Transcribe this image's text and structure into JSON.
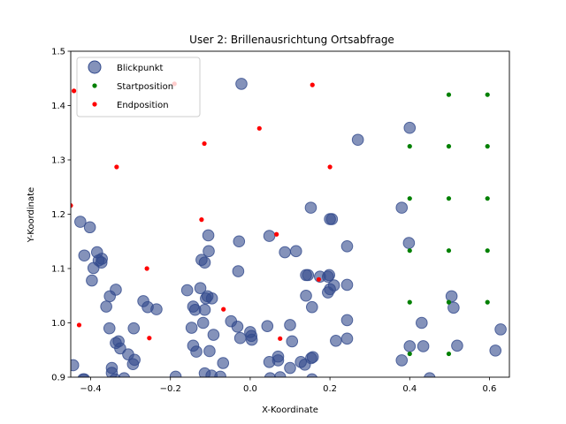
{
  "chart_data": {
    "type": "scatter",
    "title": "User 2: Brillenausrichtung Ortsabfrage",
    "xlabel": "X-Koordinate",
    "ylabel": "Y-Koordinate",
    "xlim": [
      -0.45,
      0.65
    ],
    "ylim": [
      0.9,
      1.5
    ],
    "xticks": [
      -0.4,
      -0.2,
      0.0,
      0.2,
      0.4,
      0.6
    ],
    "yticks": [
      0.9,
      1.0,
      1.1,
      1.2,
      1.3,
      1.4,
      1.5
    ],
    "xtick_labels": [
      "−0.4",
      "−0.2",
      "0.0",
      "0.2",
      "0.4",
      "0.6"
    ],
    "ytick_labels": [
      "0.9",
      "1.0",
      "1.1",
      "1.2",
      "1.3",
      "1.4",
      "1.5"
    ],
    "legend_position": "top-left",
    "series": [
      {
        "name": "Blickpunkt",
        "color": "#324a8c",
        "marker": "large-circle",
        "points": [
          [
            -0.022,
            1.44
          ],
          [
            0.27,
            1.337
          ],
          [
            0.4,
            1.359
          ],
          [
            0.152,
            1.212
          ],
          [
            0.38,
            1.212
          ],
          [
            0.2,
            1.191
          ],
          [
            0.205,
            1.191
          ],
          [
            -0.426,
            1.186
          ],
          [
            -0.402,
            1.176
          ],
          [
            -0.105,
            1.161
          ],
          [
            0.048,
            1.16
          ],
          [
            -0.028,
            1.15
          ],
          [
            0.398,
            1.147
          ],
          [
            0.243,
            1.141
          ],
          [
            -0.104,
            1.132
          ],
          [
            0.087,
            1.13
          ],
          [
            0.115,
            1.132
          ],
          [
            -0.416,
            1.124
          ],
          [
            -0.384,
            1.13
          ],
          [
            -0.38,
            1.115
          ],
          [
            -0.372,
            1.118
          ],
          [
            -0.373,
            1.111
          ],
          [
            -0.122,
            1.116
          ],
          [
            -0.114,
            1.111
          ],
          [
            -0.393,
            1.101
          ],
          [
            -0.03,
            1.095
          ],
          [
            0.145,
            1.088
          ],
          [
            0.14,
            1.088
          ],
          [
            0.198,
            1.088
          ],
          [
            0.195,
            1.085
          ],
          [
            0.175,
            1.085
          ],
          [
            -0.397,
            1.078
          ],
          [
            0.243,
            1.07
          ],
          [
            0.21,
            1.069
          ],
          [
            -0.125,
            1.064
          ],
          [
            -0.158,
            1.06
          ],
          [
            -0.337,
            1.061
          ],
          [
            0.195,
            1.056
          ],
          [
            0.2,
            1.062
          ],
          [
            -0.107,
            1.049
          ],
          [
            -0.096,
            1.045
          ],
          [
            -0.352,
            1.049
          ],
          [
            -0.111,
            1.045
          ],
          [
            0.14,
            1.05
          ],
          [
            0.505,
            1.049
          ],
          [
            -0.268,
            1.04
          ],
          [
            -0.143,
            1.03
          ],
          [
            -0.138,
            1.024
          ],
          [
            -0.114,
            1.024
          ],
          [
            -0.361,
            1.03
          ],
          [
            -0.257,
            1.029
          ],
          [
            -0.235,
            1.025
          ],
          [
            0.155,
            1.029
          ],
          [
            0.51,
            1.028
          ],
          [
            0.243,
            1.005
          ],
          [
            0.43,
            1.0
          ],
          [
            -0.118,
            1.0
          ],
          [
            -0.048,
            1.003
          ],
          [
            0.1,
            0.996
          ],
          [
            0.043,
            0.994
          ],
          [
            -0.032,
            0.993
          ],
          [
            -0.353,
            0.99
          ],
          [
            -0.292,
            0.99
          ],
          [
            -0.147,
            0.991
          ],
          [
            -0.092,
            0.978
          ],
          [
            0.0,
            0.983
          ],
          [
            0.003,
            0.976
          ],
          [
            -0.025,
            0.972
          ],
          [
            0.004,
            0.969
          ],
          [
            0.105,
            0.966
          ],
          [
            0.628,
            0.988
          ],
          [
            -0.337,
            0.963
          ],
          [
            -0.33,
            0.966
          ],
          [
            -0.326,
            0.953
          ],
          [
            -0.143,
            0.958
          ],
          [
            -0.135,
            0.947
          ],
          [
            -0.102,
            0.948
          ],
          [
            0.215,
            0.967
          ],
          [
            0.243,
            0.971
          ],
          [
            0.4,
            0.957
          ],
          [
            0.434,
            0.957
          ],
          [
            0.519,
            0.958
          ],
          [
            0.615,
            0.949
          ],
          [
            -0.306,
            0.942
          ],
          [
            -0.294,
            0.924
          ],
          [
            -0.29,
            0.932
          ],
          [
            0.07,
            0.938
          ],
          [
            0.07,
            0.931
          ],
          [
            0.048,
            0.928
          ],
          [
            0.157,
            0.937
          ],
          [
            0.153,
            0.935
          ],
          [
            0.127,
            0.928
          ],
          [
            0.1,
            0.917
          ],
          [
            0.137,
            0.923
          ],
          [
            0.38,
            0.931
          ],
          [
            -0.444,
            0.922
          ],
          [
            -0.347,
            0.917
          ],
          [
            -0.068,
            0.926
          ],
          [
            -0.347,
            0.908
          ],
          [
            -0.114,
            0.907
          ],
          [
            -0.097,
            0.903
          ],
          [
            -0.075,
            0.901
          ],
          [
            -0.187,
            0.901
          ],
          [
            -0.419,
            0.896
          ],
          [
            -0.416,
            0.896
          ],
          [
            0.05,
            0.898
          ],
          [
            0.075,
            0.9
          ],
          [
            0.155,
            0.896
          ],
          [
            0.45,
            0.898
          ],
          [
            -0.339,
            0.896
          ],
          [
            -0.316,
            0.898
          ]
        ]
      },
      {
        "name": "Startposition",
        "color": "#008000",
        "marker": "small-dot",
        "points": [
          [
            0.498,
            1.42
          ],
          [
            0.595,
            1.42
          ],
          [
            0.4,
            1.325
          ],
          [
            0.498,
            1.325
          ],
          [
            0.595,
            1.325
          ],
          [
            0.4,
            1.229
          ],
          [
            0.498,
            1.229
          ],
          [
            0.595,
            1.229
          ],
          [
            0.4,
            1.133
          ],
          [
            0.498,
            1.133
          ],
          [
            0.595,
            1.133
          ],
          [
            0.4,
            1.038
          ],
          [
            0.498,
            1.038
          ],
          [
            0.595,
            1.038
          ],
          [
            0.4,
            0.943
          ],
          [
            0.498,
            0.943
          ]
        ]
      },
      {
        "name": "Endposition",
        "color": "#ff0000",
        "marker": "small-dot",
        "points": [
          [
            -0.442,
            1.427
          ],
          [
            -0.19,
            1.44
          ],
          [
            0.156,
            1.438
          ],
          [
            0.023,
            1.358
          ],
          [
            -0.115,
            1.33
          ],
          [
            -0.335,
            1.287
          ],
          [
            0.2,
            1.287
          ],
          [
            -0.45,
            1.216
          ],
          [
            -0.122,
            1.19
          ],
          [
            0.066,
            1.163
          ],
          [
            -0.259,
            1.1
          ],
          [
            0.172,
            1.08
          ],
          [
            -0.067,
            1.025
          ],
          [
            -0.429,
            0.996
          ],
          [
            -0.253,
            0.972
          ],
          [
            0.075,
            0.971
          ]
        ]
      }
    ]
  }
}
